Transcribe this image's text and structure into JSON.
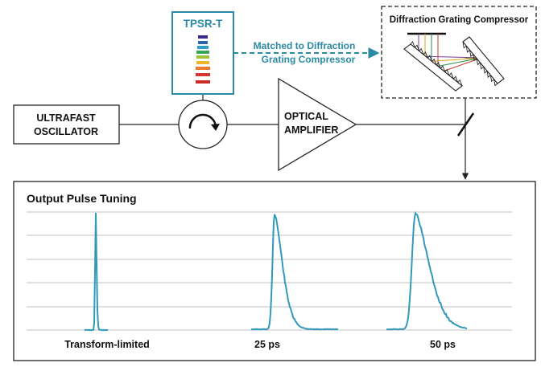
{
  "components": {
    "oscillator": {
      "line1": "ULTRAFAST",
      "line2": "OSCILLATOR"
    },
    "amplifier": {
      "line1": "OPTICAL",
      "line2": "AMPLIFIER"
    },
    "tpsr": {
      "title": "TPSR-T"
    },
    "compressor": {
      "title": "Diffraction Grating Compressor"
    },
    "matched_note": {
      "line1": "Matched to Diffraction",
      "line2": "Grating Compressor"
    }
  },
  "output_panel": {
    "title": "Output Pulse Tuning",
    "labels": [
      "Transform-limited",
      "25 ps",
      "50 ps"
    ]
  },
  "colors": {
    "teal": "#2a8aa6",
    "trace": "#3399bb",
    "grid": "#c0c0c0",
    "tpsr_bands": [
      "#3b2c8e",
      "#2e63b0",
      "#2aa0c9",
      "#38a558",
      "#9fc23a",
      "#f0b429",
      "#e9792c",
      "#d6362d",
      "#cf2a2a"
    ],
    "beam_colors": [
      "#7b3f98",
      "#e0a21c",
      "#2a8f4a",
      "#c23b2b"
    ]
  }
}
